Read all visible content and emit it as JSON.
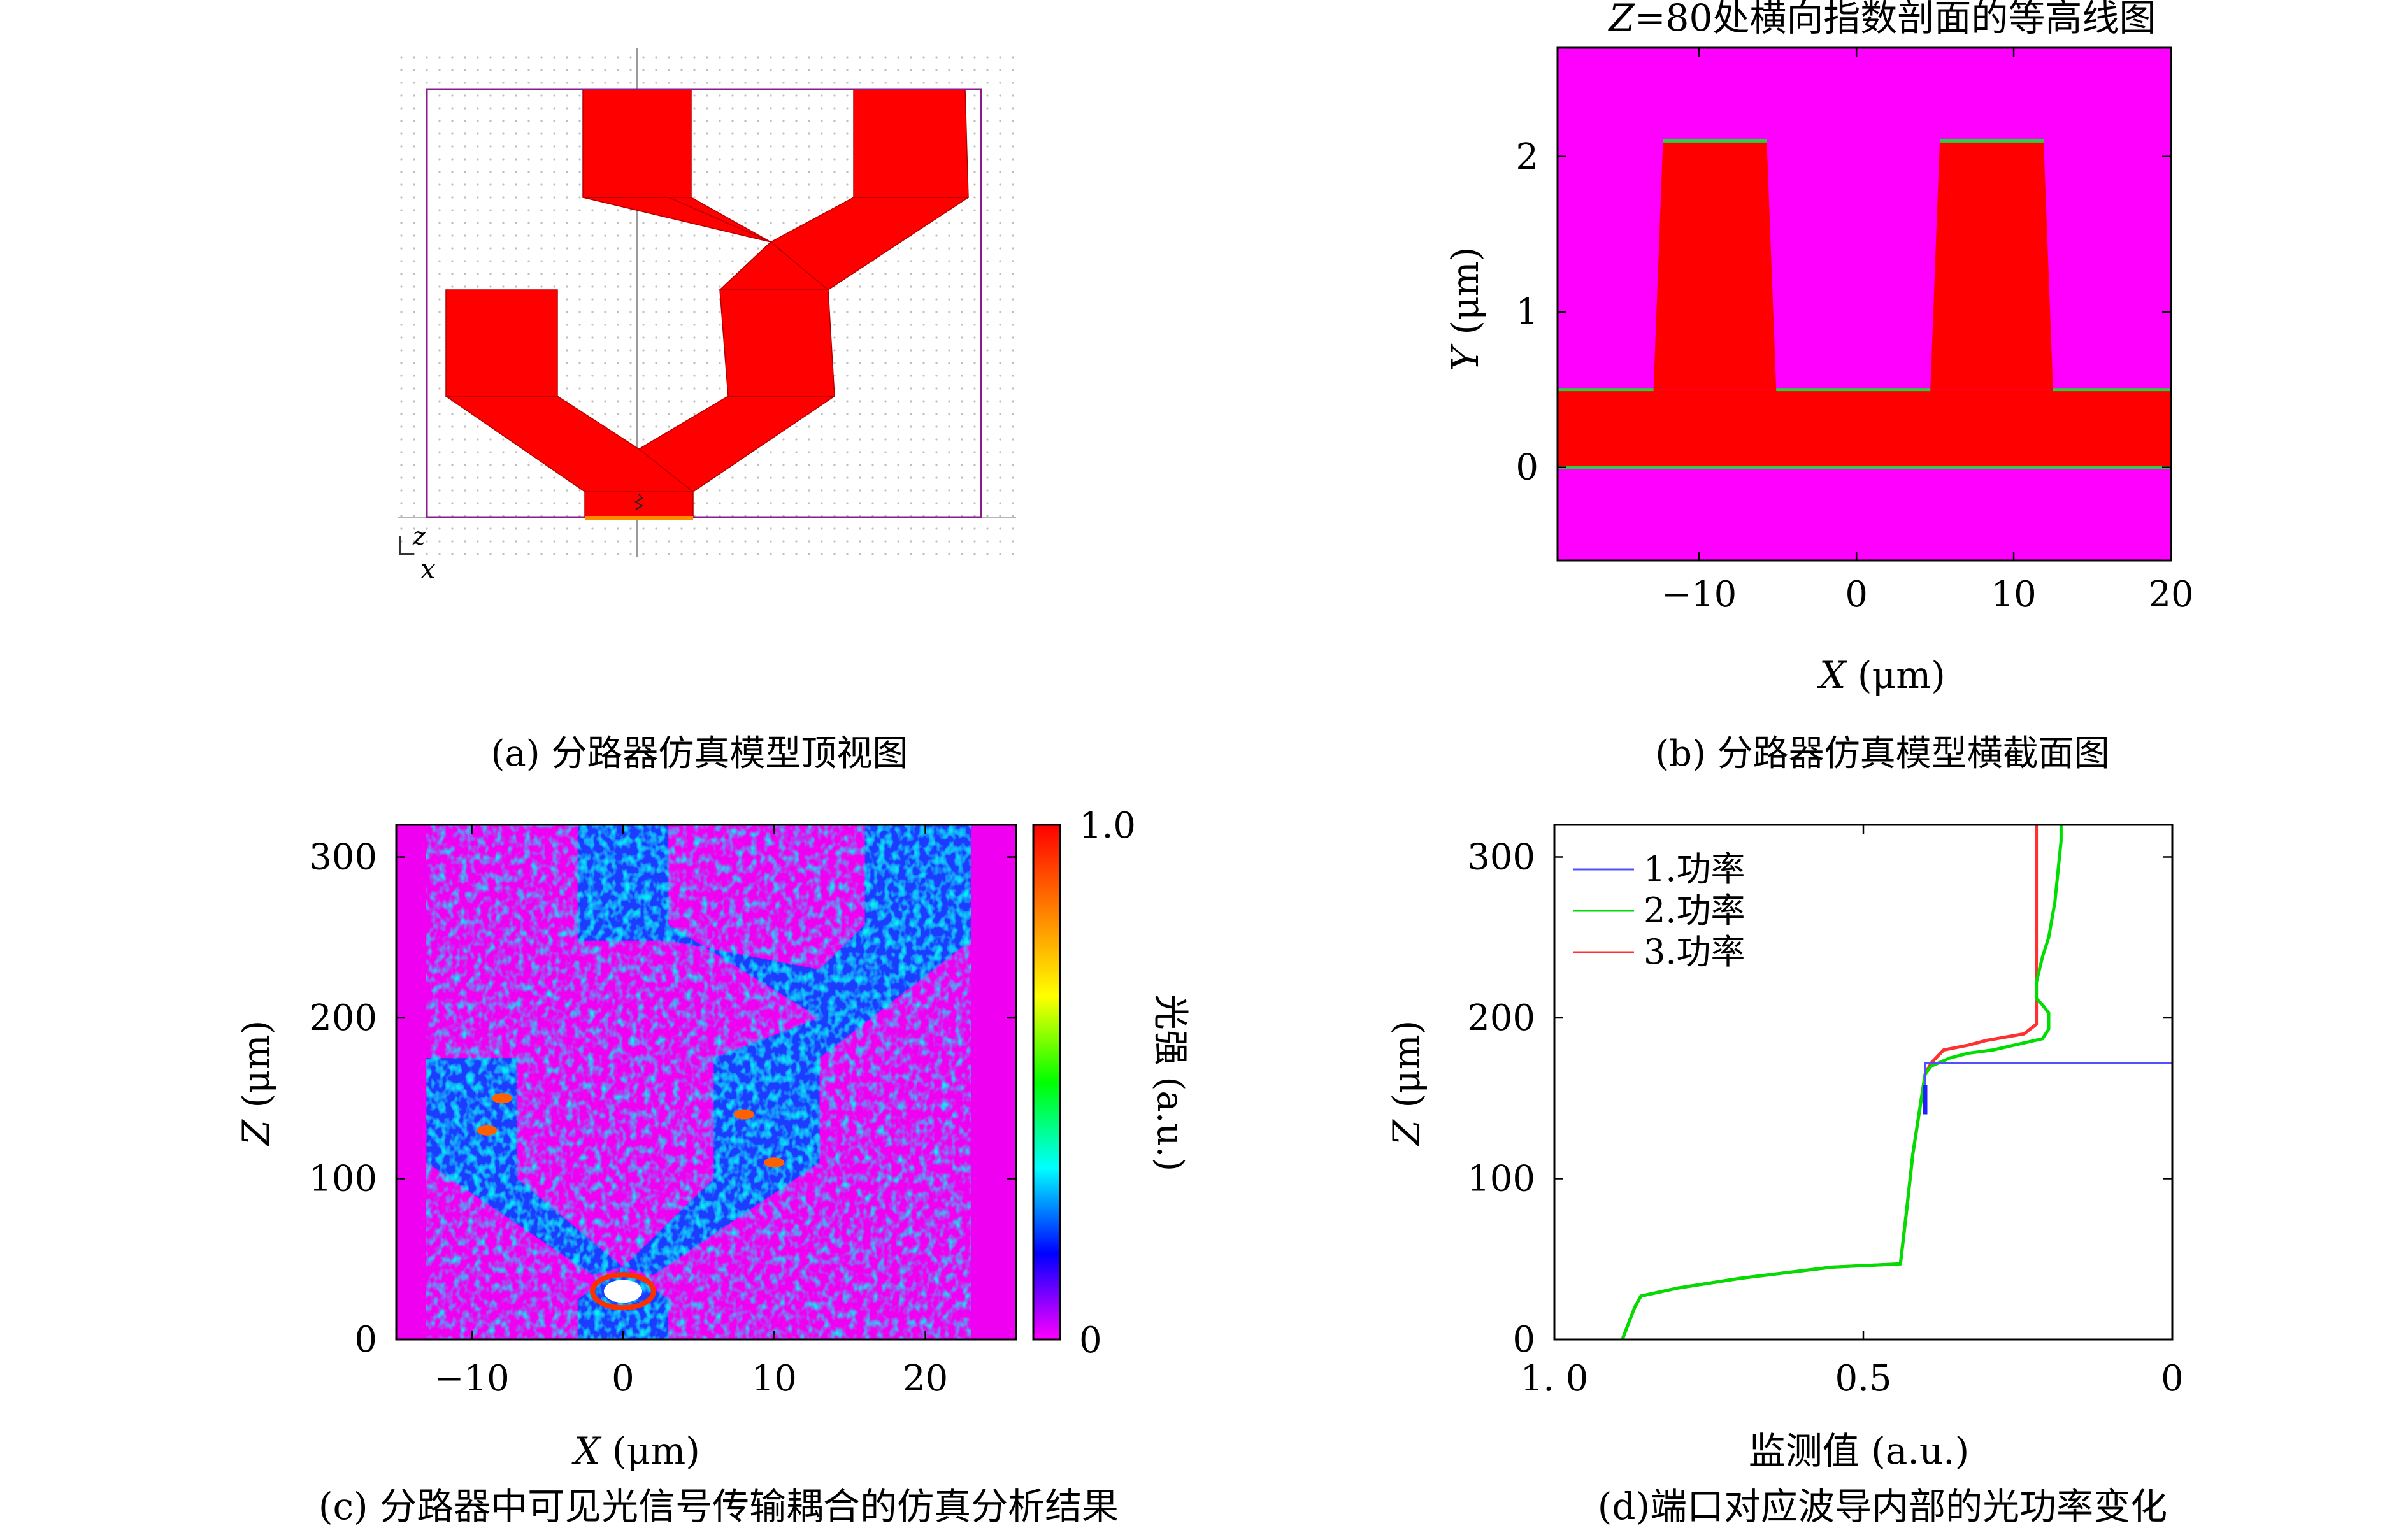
{
  "chart_data": [
    {
      "id": "a",
      "type": "diagram",
      "caption": "(a) 分路器仿真模型顶视图",
      "axis_letters": {
        "z": "z",
        "x": "x"
      },
      "colors": {
        "waveguide": "#ff0000",
        "boundary": "#8b1a8b",
        "source": "#ff8c00",
        "grid": "#c8c8c8"
      }
    },
    {
      "id": "b",
      "type": "heatmap",
      "title": "Z=80处横向指数剖面的等高线图",
      "title_italic": "Z",
      "title_rest": "=80处横向指数剖面的等高线图",
      "caption": "(b) 分路器仿真模型横截面图",
      "xlabel": "X (μm)",
      "xlabel_italic": "X",
      "xlabel_unit": " (μm)",
      "ylabel": "Y (μm)",
      "ylabel_italic": "Y",
      "ylabel_unit": " (μm)",
      "xlim": [
        -19,
        20
      ],
      "ylim": [
        -0.6,
        2.7
      ],
      "xticks": [
        -10,
        0,
        10,
        20
      ],
      "xtick_labels": [
        "−10",
        "0",
        "10",
        "20"
      ],
      "yticks": [
        0,
        1,
        2
      ],
      "ytick_labels": [
        "0",
        "1",
        "2"
      ],
      "colors": {
        "cladding": "#ff00ff",
        "core": "#ff0000",
        "contour": "#2ecc40"
      },
      "core_slab": {
        "y0": 0,
        "y1": 0.5
      },
      "ridges": [
        {
          "x_bottom": [
            -12.9,
            -5.1
          ],
          "x_top": [
            -12.3,
            -5.7
          ],
          "y_top": 2.1
        },
        {
          "x_bottom": [
            4.7,
            12.5
          ],
          "x_top": [
            5.3,
            11.9
          ],
          "y_top": 2.1
        }
      ]
    },
    {
      "id": "c",
      "type": "heatmap",
      "caption": "(c) 分路器中可见光信号传输耦合的仿真分析结果",
      "xlabel": "X (μm)",
      "xlabel_italic": "X",
      "xlabel_unit": " (μm)",
      "ylabel": "Z (μm)",
      "ylabel_italic": "Z",
      "ylabel_unit": " (μm)",
      "xlim": [
        -15,
        26
      ],
      "ylim": [
        0,
        320
      ],
      "xticks": [
        -10,
        0,
        10,
        20
      ],
      "xtick_labels": [
        "−10",
        "0",
        "10",
        "20"
      ],
      "yticks": [
        0,
        100,
        200,
        300
      ],
      "ytick_labels": [
        "0",
        "100",
        "200",
        "300"
      ],
      "colorbar": {
        "label": "光强 (a.u.)",
        "min_label": "0",
        "max_label": "1.0",
        "stops": [
          "#ff00ff",
          "#0000ff",
          "#00ffff",
          "#00ff00",
          "#ffff00",
          "#ff7f00",
          "#ff0000"
        ]
      },
      "background_color": "#f000f0"
    },
    {
      "id": "d",
      "type": "line",
      "caption": "(d)端口对应波导内部的光功率变化",
      "xlabel": "监测值 (a.u.)",
      "ylabel": "Z (μm)",
      "ylabel_italic": "Z",
      "ylabel_unit": " (μm)",
      "xlim": [
        1.0,
        0
      ],
      "ylim": [
        0,
        320
      ],
      "xticks": [
        1.0,
        0.5,
        0
      ],
      "xtick_labels": [
        "1. 0",
        "0.5",
        "0"
      ],
      "yticks": [
        0,
        100,
        200,
        300
      ],
      "ytick_labels": [
        "0",
        "100",
        "200",
        "300"
      ],
      "legend_position": "top-left",
      "series": [
        {
          "name": "1.功率",
          "color": "#5050ff",
          "points": [
            [
              0.4,
              150
            ],
            [
              0.4,
              160
            ],
            [
              0.4,
              172
            ],
            [
              0.0,
              172
            ]
          ]
        },
        {
          "name": "2.功率",
          "color": "#00dd00",
          "points": [
            [
              0.89,
              0
            ],
            [
              0.88,
              10
            ],
            [
              0.87,
              20
            ],
            [
              0.86,
              27
            ],
            [
              0.8,
              32
            ],
            [
              0.7,
              38
            ],
            [
              0.55,
              45
            ],
            [
              0.44,
              47
            ],
            [
              0.43,
              80
            ],
            [
              0.42,
              115
            ],
            [
              0.41,
              140
            ],
            [
              0.4,
              165
            ],
            [
              0.39,
              170
            ],
            [
              0.36,
              175
            ],
            [
              0.33,
              178
            ],
            [
              0.29,
              180
            ],
            [
              0.21,
              187
            ],
            [
              0.2,
              193
            ],
            [
              0.2,
              203
            ],
            [
              0.21,
              208
            ],
            [
              0.22,
              212
            ],
            [
              0.22,
              222
            ],
            [
              0.21,
              238
            ],
            [
              0.2,
              250
            ],
            [
              0.19,
              272
            ],
            [
              0.18,
              310
            ],
            [
              0.18,
              320
            ]
          ]
        },
        {
          "name": "3.功率",
          "color": "#ff3030",
          "points": [
            [
              0.89,
              0
            ],
            [
              0.88,
              10
            ],
            [
              0.87,
              20
            ],
            [
              0.86,
              27
            ],
            [
              0.8,
              32
            ],
            [
              0.7,
              38
            ],
            [
              0.55,
              45
            ],
            [
              0.44,
              47
            ],
            [
              0.43,
              80
            ],
            [
              0.42,
              115
            ],
            [
              0.41,
              140
            ],
            [
              0.4,
              165
            ],
            [
              0.39,
              172
            ],
            [
              0.37,
              180
            ],
            [
              0.33,
              183
            ],
            [
              0.3,
              186
            ],
            [
              0.24,
              190
            ],
            [
              0.22,
              196
            ],
            [
              0.22,
              210
            ],
            [
              0.22,
              240
            ],
            [
              0.22,
              280
            ],
            [
              0.22,
              320
            ]
          ]
        }
      ]
    }
  ]
}
